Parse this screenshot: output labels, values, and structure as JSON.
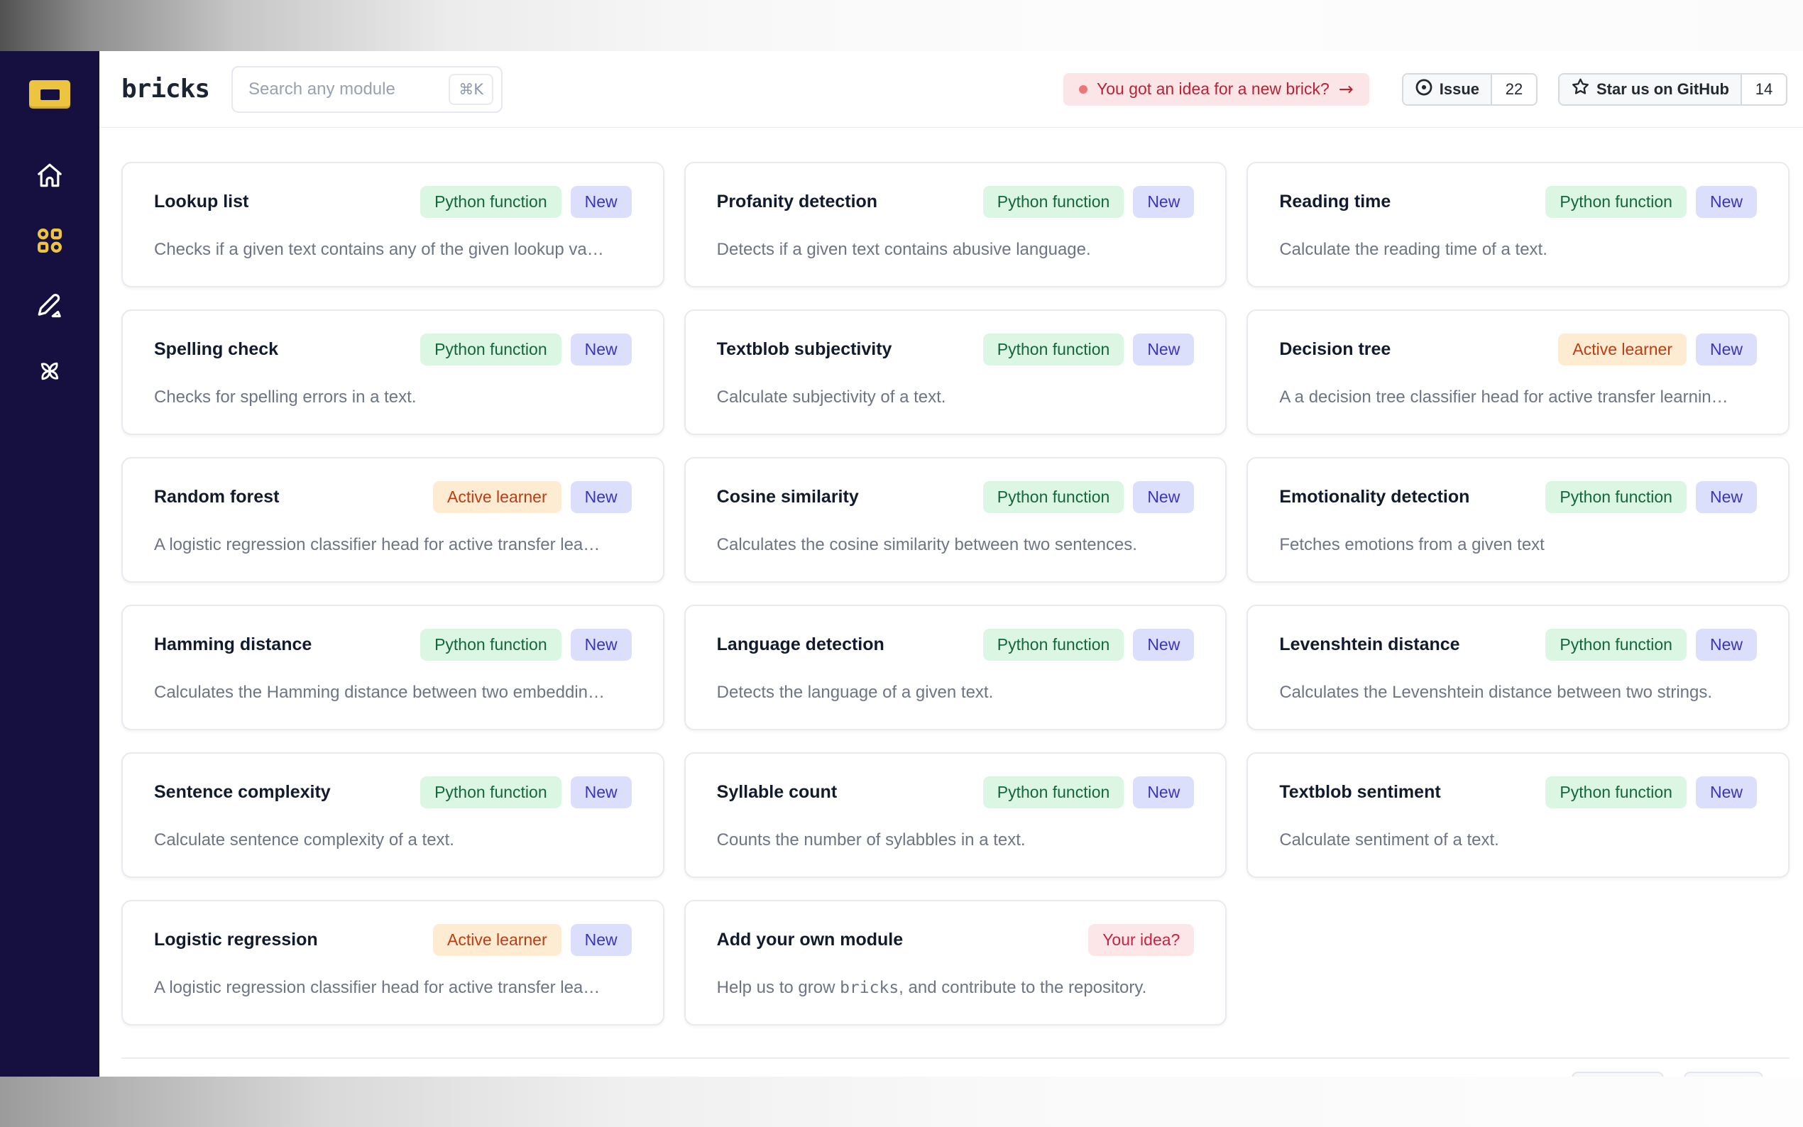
{
  "brand": {
    "logo_text": "bricks"
  },
  "search": {
    "placeholder": "Search any module",
    "shortcut": "⌘K"
  },
  "header": {
    "idea_banner": {
      "text": "You got an idea for a new brick?",
      "arrow": "→"
    },
    "issue_button": {
      "label": "Issue",
      "count": "22"
    },
    "star_button": {
      "label": "Star us on GitHub",
      "count": "14"
    }
  },
  "sidebar": {
    "items": [
      {
        "icon": "home-icon",
        "active": false
      },
      {
        "icon": "modules-grid-icon",
        "active": true
      },
      {
        "icon": "edit-pencil-icon",
        "active": false
      },
      {
        "icon": "pinwheel-icon",
        "active": false
      }
    ]
  },
  "colors": {
    "sidebar_bg": "#151040",
    "brand_yellow": "#edc43d",
    "tag_python_bg": "#dcf6e4",
    "tag_python_text": "#15673a",
    "tag_new_bg": "#dbdffb",
    "tag_new_text": "#3a34bf",
    "tag_learner_bg": "#fdebd2",
    "tag_learner_text": "#bc3d15",
    "tag_idea_bg": "#fce6e8",
    "tag_idea_text": "#c72342",
    "idea_banner_bg": "#fbe5e6",
    "idea_banner_text": "#b92135"
  },
  "modules": [
    {
      "title": "Lookup list",
      "tags": [
        {
          "label": "Python function",
          "type": "python"
        },
        {
          "label": "New",
          "type": "new"
        }
      ],
      "description_parts": [
        {
          "text": "Checks if a given text contains any of the given lookup va…"
        }
      ]
    },
    {
      "title": "Profanity detection",
      "tags": [
        {
          "label": "Python function",
          "type": "python"
        },
        {
          "label": "New",
          "type": "new"
        }
      ],
      "description_parts": [
        {
          "text": "Detects if a given text contains abusive language."
        }
      ]
    },
    {
      "title": "Reading time",
      "tags": [
        {
          "label": "Python function",
          "type": "python"
        },
        {
          "label": "New",
          "type": "new"
        }
      ],
      "description_parts": [
        {
          "text": "Calculate the reading time of a text."
        }
      ]
    },
    {
      "title": "Spelling check",
      "tags": [
        {
          "label": "Python function",
          "type": "python"
        },
        {
          "label": "New",
          "type": "new"
        }
      ],
      "description_parts": [
        {
          "text": "Checks for spelling errors in a text."
        }
      ]
    },
    {
      "title": "Textblob subjectivity",
      "tags": [
        {
          "label": "Python function",
          "type": "python"
        },
        {
          "label": "New",
          "type": "new"
        }
      ],
      "description_parts": [
        {
          "text": "Calculate subjectivity of a text."
        }
      ]
    },
    {
      "title": "Decision tree",
      "tags": [
        {
          "label": "Active learner",
          "type": "learner"
        },
        {
          "label": "New",
          "type": "new"
        }
      ],
      "description_parts": [
        {
          "text": "A a decision tree classifier head for active transfer learnin…"
        }
      ]
    },
    {
      "title": "Random forest",
      "tags": [
        {
          "label": "Active learner",
          "type": "learner"
        },
        {
          "label": "New",
          "type": "new"
        }
      ],
      "description_parts": [
        {
          "text": "A logistic regression classifier head for active transfer lea…"
        }
      ]
    },
    {
      "title": "Cosine similarity",
      "tags": [
        {
          "label": "Python function",
          "type": "python"
        },
        {
          "label": "New",
          "type": "new"
        }
      ],
      "description_parts": [
        {
          "text": "Calculates the cosine similarity between two sentences."
        }
      ]
    },
    {
      "title": "Emotionality detection",
      "tags": [
        {
          "label": "Python function",
          "type": "python"
        },
        {
          "label": "New",
          "type": "new"
        }
      ],
      "description_parts": [
        {
          "text": "Fetches emotions from a given text"
        }
      ]
    },
    {
      "title": "Hamming distance",
      "tags": [
        {
          "label": "Python function",
          "type": "python"
        },
        {
          "label": "New",
          "type": "new"
        }
      ],
      "description_parts": [
        {
          "text": "Calculates the Hamming distance between two embeddin…"
        }
      ]
    },
    {
      "title": "Language detection",
      "tags": [
        {
          "label": "Python function",
          "type": "python"
        },
        {
          "label": "New",
          "type": "new"
        }
      ],
      "description_parts": [
        {
          "text": "Detects the language of a given text."
        }
      ]
    },
    {
      "title": "Levenshtein distance",
      "tags": [
        {
          "label": "Python function",
          "type": "python"
        },
        {
          "label": "New",
          "type": "new"
        }
      ],
      "description_parts": [
        {
          "text": "Calculates the Levenshtein distance between two strings."
        }
      ]
    },
    {
      "title": "Sentence complexity",
      "tags": [
        {
          "label": "Python function",
          "type": "python"
        },
        {
          "label": "New",
          "type": "new"
        }
      ],
      "description_parts": [
        {
          "text": "Calculate sentence complexity of a text."
        }
      ]
    },
    {
      "title": "Syllable count",
      "tags": [
        {
          "label": "Python function",
          "type": "python"
        },
        {
          "label": "New",
          "type": "new"
        }
      ],
      "description_parts": [
        {
          "text": "Counts the number of sylabbles in a text."
        }
      ]
    },
    {
      "title": "Textblob sentiment",
      "tags": [
        {
          "label": "Python function",
          "type": "python"
        },
        {
          "label": "New",
          "type": "new"
        }
      ],
      "description_parts": [
        {
          "text": "Calculate sentiment of a text."
        }
      ]
    },
    {
      "title": "Logistic regression",
      "tags": [
        {
          "label": "Active learner",
          "type": "learner"
        },
        {
          "label": "New",
          "type": "new"
        }
      ],
      "description_parts": [
        {
          "text": "A logistic regression classifier head for active transfer lea…"
        }
      ]
    },
    {
      "title": "Add your own module",
      "tags": [
        {
          "label": "Your idea?",
          "type": "idea"
        }
      ],
      "description_parts": [
        {
          "text": "Help us to grow "
        },
        {
          "code": "bricks"
        },
        {
          "text": ", and contribute to the repository."
        }
      ]
    }
  ],
  "pagination": {
    "visible_buttons": 2
  }
}
